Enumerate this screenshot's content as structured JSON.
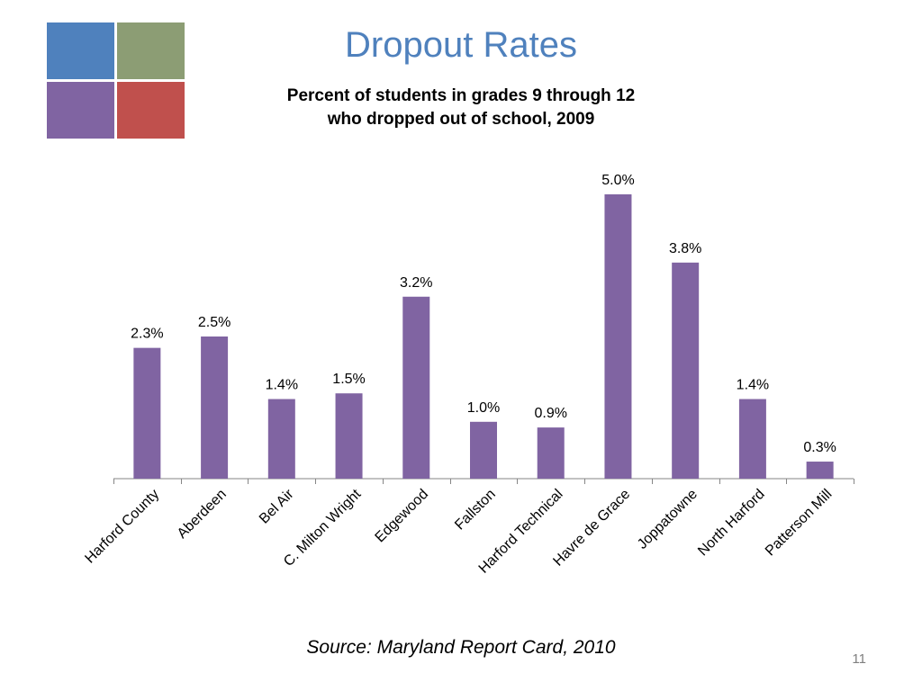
{
  "slide": {
    "title": "Dropout Rates",
    "subtitle_line1": "Percent of students in grades 9 through 12",
    "subtitle_line2": "who dropped out of school, 2009",
    "source": "Source: Maryland Report Card, 2010",
    "page_number": "11"
  },
  "logo": {
    "tile_colors": [
      "#4f81bd",
      "#8c9d74",
      "#8064a2",
      "#c0504d"
    ]
  },
  "colors": {
    "bar": "#8064a2",
    "axis": "#868686",
    "title": "#4f81bd"
  },
  "chart_data": {
    "type": "bar",
    "title": "Percent of students in grades 9 through 12 who dropped out of school, 2009",
    "categories": [
      "Harford County",
      "Aberdeen",
      "Bel Air",
      "C. Milton Wright",
      "Edgewood",
      "Fallston",
      "Harford Technical",
      "Havre de Grace",
      "Joppatowne",
      "North Harford",
      "Patterson Mill"
    ],
    "values": [
      2.3,
      2.5,
      1.4,
      1.5,
      3.2,
      1.0,
      0.9,
      5.0,
      3.8,
      1.4,
      0.3
    ],
    "data_labels": [
      "2.3%",
      "2.5%",
      "1.4%",
      "1.5%",
      "3.2%",
      "1.0%",
      "0.9%",
      "5.0%",
      "3.8%",
      "1.4%",
      "0.3%"
    ],
    "xlabel": "",
    "ylabel": "",
    "ylim": [
      0,
      5.0
    ],
    "grid": false,
    "legend": "none",
    "y_axis_visible": false
  }
}
